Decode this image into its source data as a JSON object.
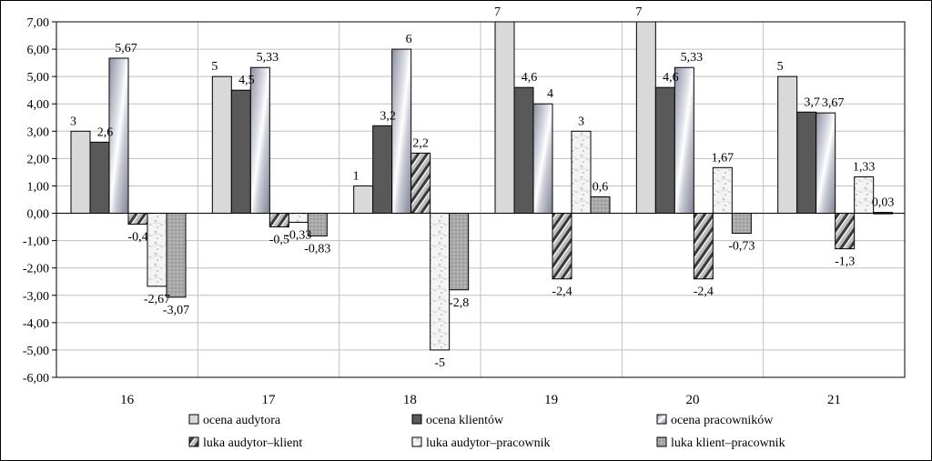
{
  "chart_data": {
    "type": "bar",
    "categories": [
      "16",
      "17",
      "18",
      "19",
      "20",
      "21"
    ],
    "ylim": [
      -6,
      7
    ],
    "y_ticks": [
      "-6,00",
      "-5,00",
      "-4,00",
      "-3,00",
      "-2,00",
      "-1,00",
      "0,00",
      "1,00",
      "2,00",
      "3,00",
      "4,00",
      "5,00",
      "6,00",
      "7,00"
    ],
    "grid": true,
    "legend_position": "bottom",
    "series": [
      {
        "name": "ocena audytora",
        "values": [
          3,
          5,
          1,
          7,
          7,
          5
        ],
        "labels": [
          "3",
          "5",
          "1",
          "7",
          "7",
          "5"
        ],
        "color": "#d9d9d9",
        "pattern": "solid-light"
      },
      {
        "name": "ocena klientów",
        "values": [
          2.6,
          4.5,
          3.2,
          4.6,
          4.6,
          3.7
        ],
        "labels": [
          "2,6",
          "4,5",
          "3,2",
          "4,6",
          "4,6",
          "3,7"
        ],
        "color": "#595959",
        "pattern": "solid-dark"
      },
      {
        "name": "ocena pracowników",
        "values": [
          5.67,
          5.33,
          6,
          4,
          5.33,
          3.67
        ],
        "labels": [
          "5,67",
          "5,33",
          "6",
          "4",
          "5,33",
          "3,67"
        ],
        "color": "#a6a9b8",
        "pattern": "metallic"
      },
      {
        "name": "luka audytor–klient",
        "values": [
          -0.4,
          -0.5,
          2.2,
          -2.4,
          -2.4,
          -1.3
        ],
        "labels": [
          "-0,4",
          "-0,5",
          "2,2",
          "-2,4",
          "-2,4",
          "-1,3"
        ],
        "color": "#7f7f7f",
        "pattern": "diagonal"
      },
      {
        "name": "luka audytor–pracownik",
        "values": [
          -2.67,
          -0.33,
          -5,
          3,
          1.67,
          1.33
        ],
        "labels": [
          "-2,67",
          "-0,33",
          "-5",
          "3",
          "1,67",
          "1,33"
        ],
        "color": "#ededed",
        "pattern": "marble"
      },
      {
        "name": "luka klient–pracownik",
        "values": [
          -3.07,
          -0.83,
          -2.8,
          0.6,
          -0.73,
          0.03
        ],
        "labels": [
          "-3,07",
          "-0,83",
          "-2,8",
          "0,6",
          "-0,73",
          "0,03"
        ],
        "color": "#a0a0a0",
        "pattern": "dotted"
      }
    ]
  }
}
